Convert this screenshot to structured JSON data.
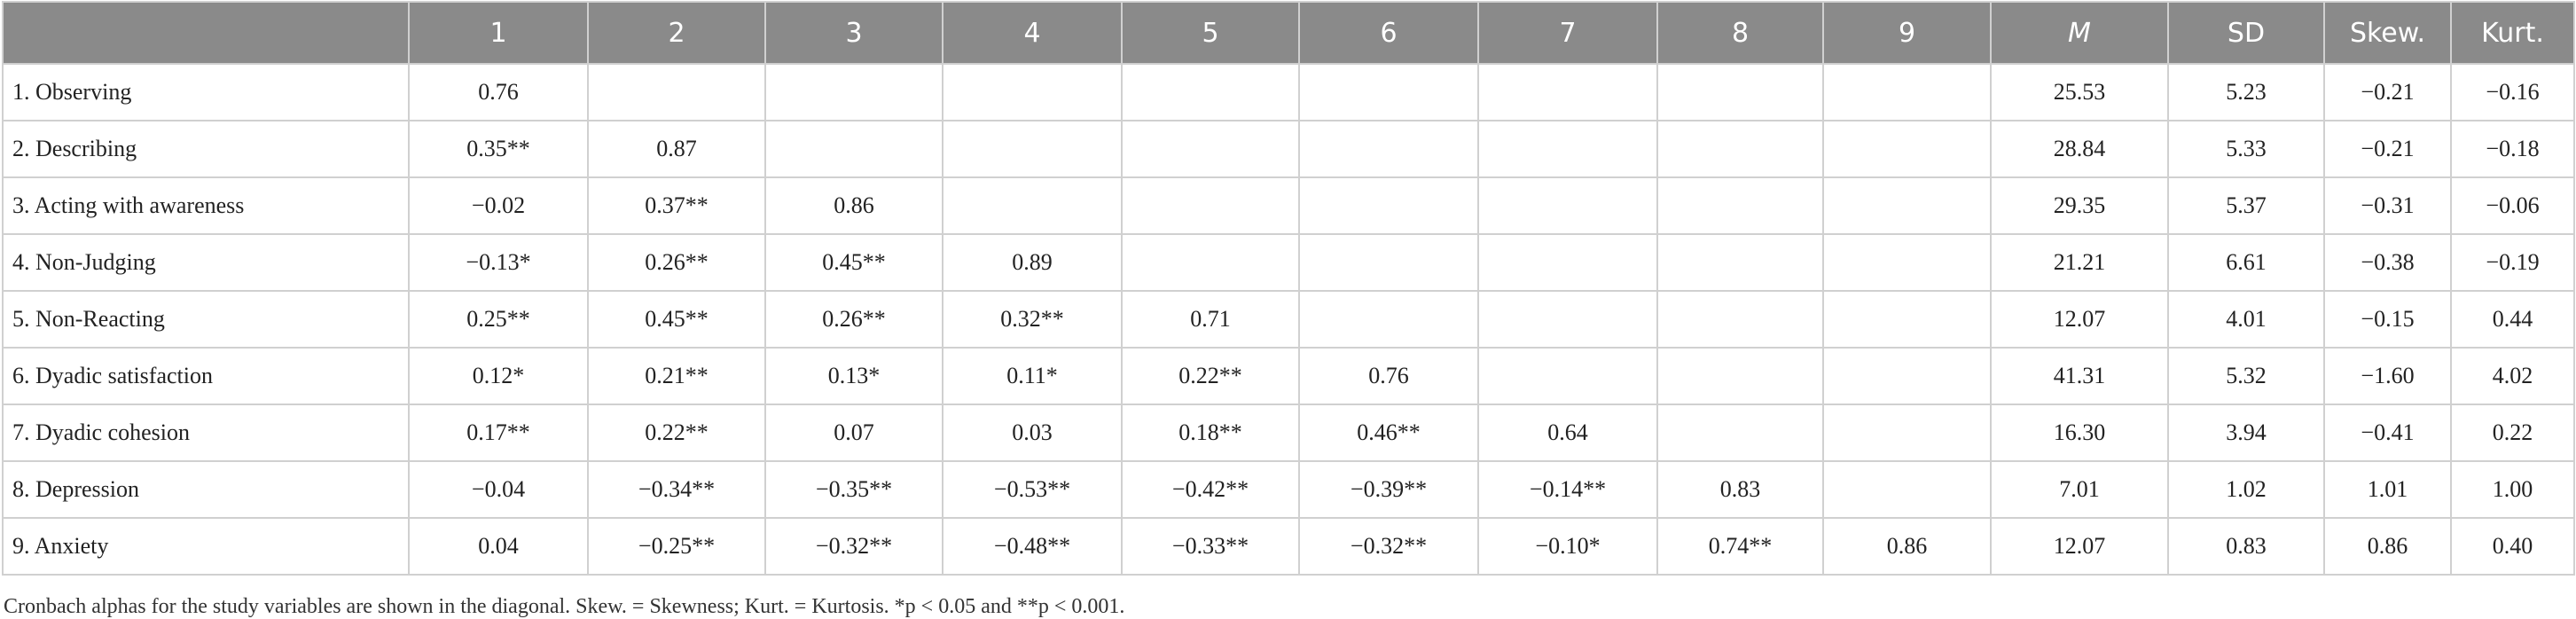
{
  "table": {
    "header": [
      "",
      "1",
      "2",
      "3",
      "4",
      "5",
      "6",
      "7",
      "8",
      "9",
      "M",
      "SD",
      "Skew.",
      "Kurt."
    ],
    "rows": [
      [
        "1. Observing",
        "0.76",
        null,
        null,
        null,
        null,
        null,
        null,
        null,
        null,
        "25.53",
        "5.23",
        "−0.21",
        "−0.16"
      ],
      [
        "2. Describing",
        "0.35**",
        "0.87",
        null,
        null,
        null,
        null,
        null,
        null,
        null,
        "28.84",
        "5.33",
        "−0.21",
        "−0.18"
      ],
      [
        "3. Acting with awareness",
        "−0.02",
        "0.37**",
        "0.86",
        null,
        null,
        null,
        null,
        null,
        null,
        "29.35",
        "5.37",
        "−0.31",
        "−0.06"
      ],
      [
        "4. Non-Judging",
        "−0.13*",
        "0.26**",
        "0.45**",
        "0.89",
        null,
        null,
        null,
        null,
        null,
        "21.21",
        "6.61",
        "−0.38",
        "−0.19"
      ],
      [
        "5. Non-Reacting",
        "0.25**",
        "0.45**",
        "0.26**",
        "0.32**",
        "0.71",
        null,
        null,
        null,
        null,
        "12.07",
        "4.01",
        "−0.15",
        "0.44"
      ],
      [
        "6. Dyadic satisfaction",
        "0.12*",
        "0.21**",
        "0.13*",
        "0.11*",
        "0.22**",
        "0.76",
        null,
        null,
        null,
        "41.31",
        "5.32",
        "−1.60",
        "4.02"
      ],
      [
        "7. Dyadic cohesion",
        "0.17**",
        "0.22**",
        "0.07",
        "0.03",
        "0.18**",
        "0.46**",
        "0.64",
        null,
        null,
        "16.30",
        "3.94",
        "−0.41",
        "0.22"
      ],
      [
        "8. Depression",
        "−0.04",
        "−0.34**",
        "−0.35**",
        "−0.53**",
        "−0.42**",
        "−0.39**",
        "−0.14**",
        "0.83",
        null,
        "7.01",
        "1.02",
        "1.01",
        "1.00"
      ],
      [
        "9. Anxiety",
        "0.04",
        "−0.25**",
        "−0.32**",
        "−0.48**",
        "−0.33**",
        "−0.32**",
        "−0.10*",
        "0.74**",
        "0.86",
        "12.07",
        "0.83",
        "0.86",
        "0.40"
      ]
    ]
  },
  "footnote": "Cronbach alphas for the study variables are shown in the diagonal. Skew. = Skewness; Kurt. = Kurtosis. *p < 0.05 and **p < 0.001."
}
